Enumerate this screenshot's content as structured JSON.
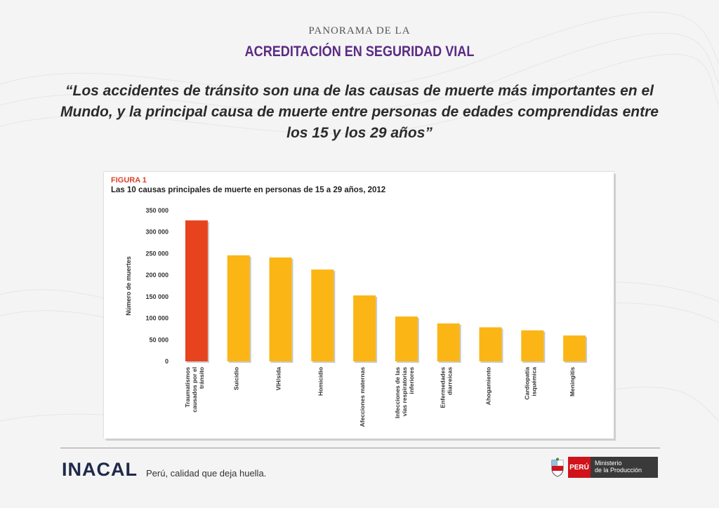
{
  "header": {
    "kicker": "PANORAMA DE LA",
    "headline": "ACREDITACIÓN EN SEGURIDAD VIAL",
    "quote": "“Los accidentes de tránsito son una de las causas de muerte más importantes en el Mundo, y la principal causa de muerte entre personas de edades comprendidas entre los 15 y los 29 años”"
  },
  "figure": {
    "label": "FIGURA 1",
    "title": "Las 10 causas principales de muerte en personas de 15 a 29 años, 2012"
  },
  "colors": {
    "highlight_bar": "#e8431f",
    "bar": "#fbb615",
    "headline": "#5b2a86",
    "figure_label": "#d9422a"
  },
  "chart_data": {
    "type": "bar",
    "title": "Las 10 causas principales de muerte en personas de 15 a 29 años, 2012",
    "xlabel": "",
    "ylabel": "Número de muertes",
    "ylim": [
      0,
      350000
    ],
    "yticks": [
      0,
      50000,
      100000,
      150000,
      200000,
      250000,
      300000,
      350000
    ],
    "ytick_labels": [
      "0",
      "50 000",
      "100 000",
      "150 000",
      "200 000",
      "250 000",
      "300 000",
      "350 000"
    ],
    "grid": false,
    "categories": [
      "Traumatismos causados por el tránsito",
      "Suicidio",
      "VIH/sida",
      "Homicidio",
      "Afecciones maternas",
      "Infecciones de las vías respiratorias inferiores",
      "Enfermedades diarreicas",
      "Ahogamiento",
      "Cardiopatía isquémica",
      "Meningitis"
    ],
    "category_lines": [
      [
        "Traumatismos",
        "causados por el",
        "tránsito"
      ],
      [
        "Suicidio"
      ],
      [
        "VIH/sida"
      ],
      [
        "Homicidio"
      ],
      [
        "Afecciones maternas"
      ],
      [
        "Infecciones de las",
        "vías respiratorias",
        "inferiores"
      ],
      [
        "Enfermedades",
        "diarreicas"
      ],
      [
        "Ahogamiento"
      ],
      [
        "Cardiopatía",
        "isquémica"
      ],
      [
        "Meningitis"
      ]
    ],
    "values": [
      327000,
      246000,
      241000,
      213000,
      153000,
      104000,
      88000,
      79000,
      72000,
      60000
    ],
    "highlight_index": 0
  },
  "footer": {
    "brand": "INACAL",
    "tagline": "Perú, calidad que deja huella.",
    "gov_country": "PERÚ",
    "gov_ministry_line1": "Ministerio",
    "gov_ministry_line2": "de la Producción",
    "emblem_icon": "peru-coat-of-arms-icon"
  }
}
